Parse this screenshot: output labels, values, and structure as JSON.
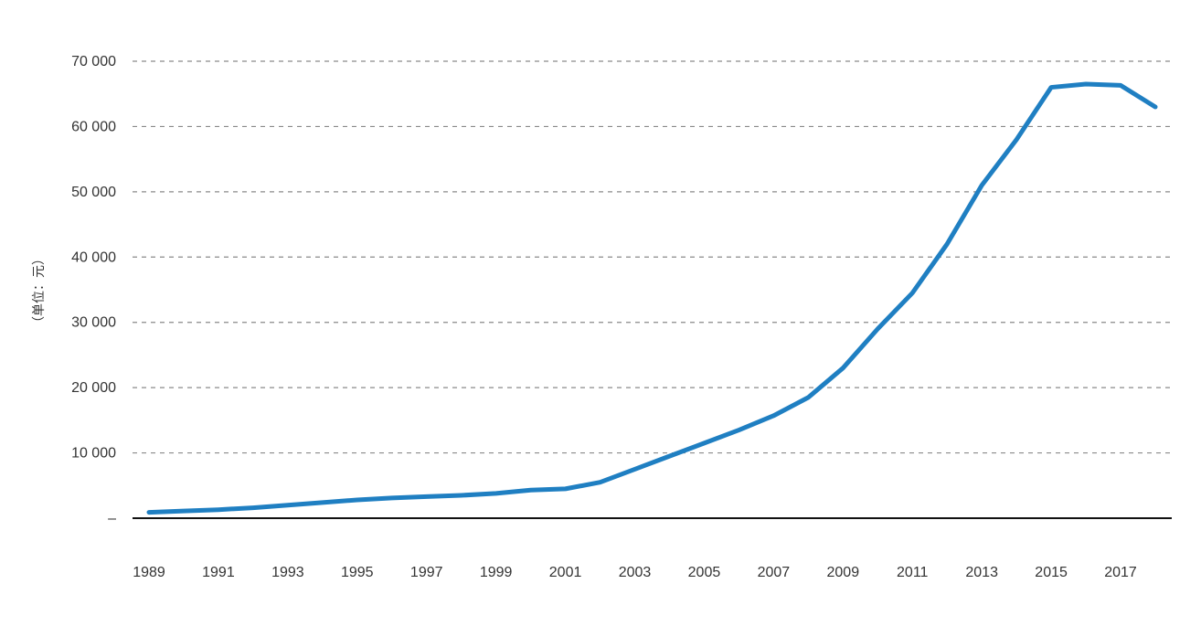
{
  "chart_data": {
    "type": "line",
    "title": "",
    "xlabel": "",
    "ylabel": "（单位：元）",
    "x": [
      1989,
      1990,
      1991,
      1992,
      1993,
      1994,
      1995,
      1996,
      1997,
      1998,
      1999,
      2000,
      2001,
      2002,
      2003,
      2004,
      2005,
      2006,
      2007,
      2008,
      2009,
      2010,
      2011,
      2012,
      2013,
      2014,
      2015,
      2016,
      2017,
      2018
    ],
    "x_tick_labels": [
      "1989",
      "1991",
      "1993",
      "1995",
      "1997",
      "1999",
      "2001",
      "2003",
      "2005",
      "2007",
      "2009",
      "2011",
      "2013",
      "2015",
      "2017"
    ],
    "y_tick_labels": [
      "–",
      "10 000",
      "20 000",
      "30 000",
      "40 000",
      "50 000",
      "60 000",
      "70 000"
    ],
    "ylim": [
      0,
      70000
    ],
    "xlim": [
      1989,
      2018
    ],
    "grid": true,
    "legend": "none",
    "series": [
      {
        "color": "#1f7fc2",
        "values": [
          900,
          1100,
          1300,
          1600,
          2000,
          2400,
          2800,
          3100,
          3300,
          3500,
          3800,
          4300,
          4500,
          5500,
          7500,
          9500,
          11500,
          13500,
          15700,
          18500,
          23000,
          29000,
          34500,
          42000,
          51000,
          58000,
          66000,
          66500,
          66300,
          63000
        ]
      }
    ]
  },
  "colors": {
    "line": "#1f7fc2",
    "grid": "#8a8a8a",
    "axis": "#111111",
    "text": "#333333"
  }
}
